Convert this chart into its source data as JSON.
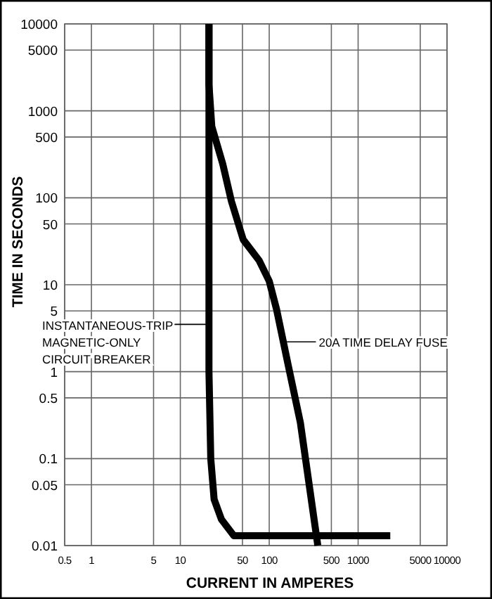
{
  "chart_data": {
    "type": "line",
    "xlabel": "CURRENT IN AMPERES",
    "ylabel": "TIME IN SECONDS",
    "log": "xy",
    "grid": true,
    "line_style": "solid",
    "marker": "none",
    "xlim": [
      0.5,
      10000
    ],
    "xticks": [
      0.5,
      1,
      5,
      10,
      50,
      100,
      500,
      1000,
      5000,
      10000
    ],
    "ylim": [
      0.01,
      10000
    ],
    "yticks": [
      0.01,
      0.05,
      0.1,
      0.5,
      1,
      5,
      10,
      50,
      100,
      500,
      1000,
      5000,
      10000
    ],
    "series": [
      {
        "color": "#000000",
        "x": [
          21,
          21,
          21,
          22,
          24,
          29,
          40,
          2300
        ],
        "values": [
          10000,
          1000,
          1,
          0.1,
          0.034,
          0.02,
          0.013,
          0.013
        ]
      },
      {
        "color": "#000000",
        "x": [
          21,
          21,
          22.6,
          30,
          37.6,
          51,
          77,
          100,
          121,
          164,
          224,
          352
        ],
        "values": [
          10000,
          2000,
          660,
          245,
          91,
          33,
          19,
          11,
          5.2,
          1.17,
          0.26,
          0.01
        ]
      }
    ],
    "annotations": [
      {
        "text": "INSTANTANEOUS-TRIP\nMAGNETIC-ONLY\nCIRCUIT BREAKER",
        "x": 21,
        "y": 3.5
      },
      {
        "text": "20A TIME DELAY FUSE",
        "x": 145,
        "y": 2.2
      }
    ]
  }
}
